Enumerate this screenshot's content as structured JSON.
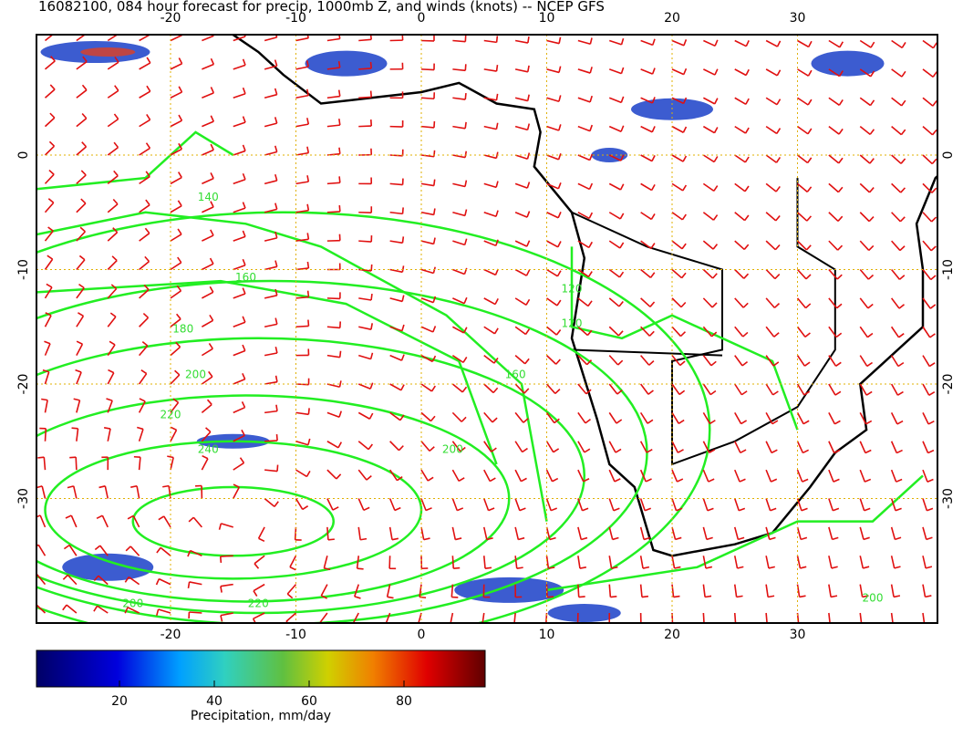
{
  "title": "16082100, 084 hour forecast for precip, 1000mb Z, and winds (knots) -- NCEP GFS",
  "x_axis_top": [
    -20,
    -10,
    0,
    10,
    20,
    30
  ],
  "x_axis_bottom": [
    -20,
    -10,
    0,
    10,
    20,
    30
  ],
  "y_axis_left": [
    0,
    -10,
    -20,
    -30
  ],
  "y_axis_right": [
    0,
    -10,
    -20,
    -30
  ],
  "contour_labels": [
    140,
    160,
    180,
    200,
    220,
    240,
    200,
    120,
    120,
    160,
    200,
    220,
    200
  ],
  "colorbar": {
    "ticks": [
      20,
      40,
      60,
      80
    ],
    "label": "Precipitation, mm/day"
  }
}
